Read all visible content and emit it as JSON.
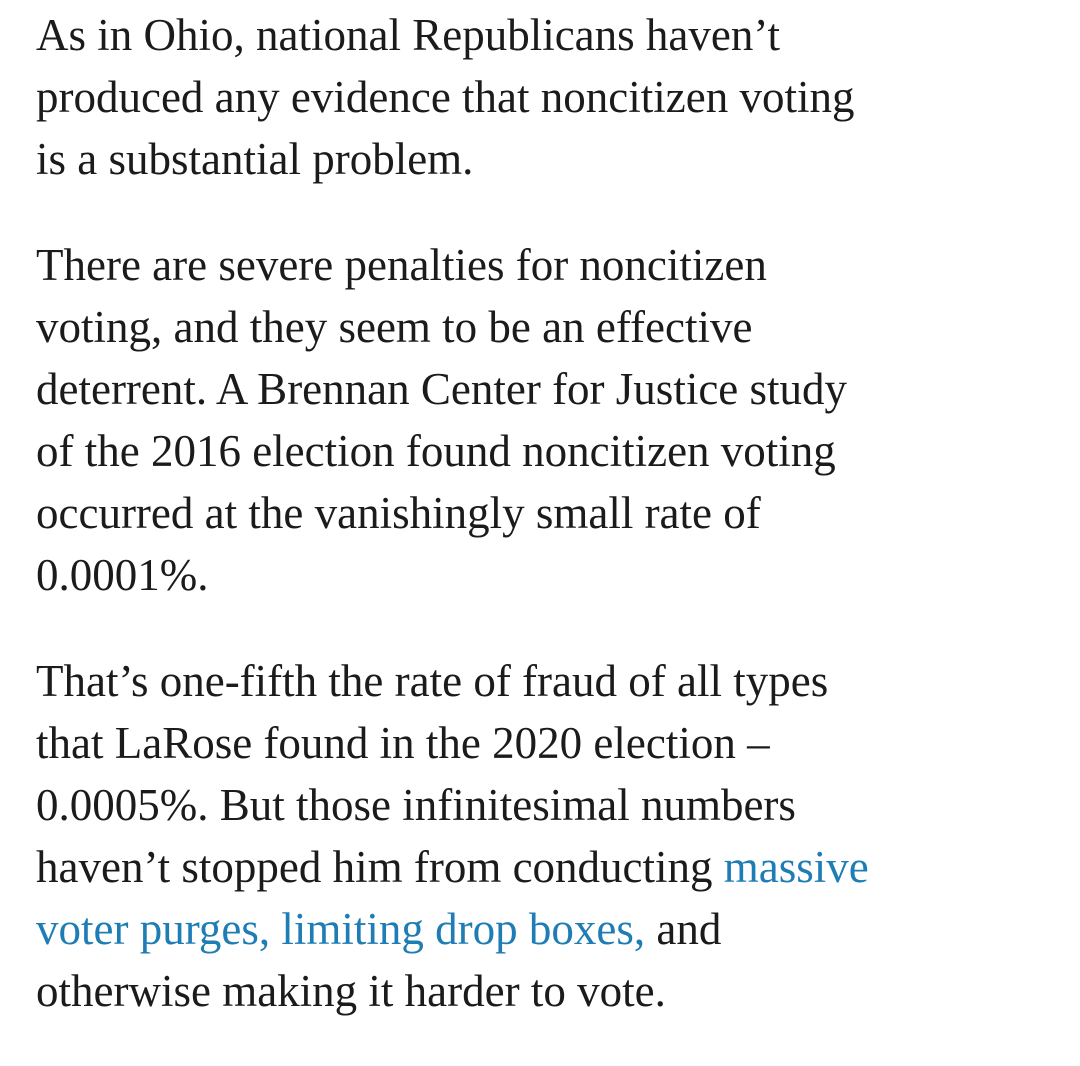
{
  "paragraphs": [
    {
      "lines": [
        [
          {
            "text": "As in Ohio, national Republicans haven’t"
          }
        ],
        [
          {
            "text": "produced any evidence that noncitizen voting"
          }
        ],
        [
          {
            "text": "is a substantial problem."
          }
        ]
      ]
    },
    {
      "lines": [
        [
          {
            "text": "There are severe penalties for noncitizen"
          }
        ],
        [
          {
            "text": "voting, and they seem to be an effective"
          }
        ],
        [
          {
            "text": "deterrent. A Brennan Center for Justice study"
          }
        ],
        [
          {
            "text": "of the 2016 election found noncitizen voting"
          }
        ],
        [
          {
            "text": "occurred at the vanishingly small rate of"
          }
        ],
        [
          {
            "text": "0.0001%."
          }
        ]
      ]
    },
    {
      "lines": [
        [
          {
            "text": "That’s one-fifth the rate of fraud of all types"
          }
        ],
        [
          {
            "text": "that LaRose found in the 2020 election –"
          }
        ],
        [
          {
            "text": "0.0005%. But those infinitesimal numbers"
          }
        ],
        [
          {
            "text": "haven’t stopped him from conducting "
          },
          {
            "link": "massive"
          }
        ],
        [
          {
            "link": "voter purges,"
          },
          {
            "text": " "
          },
          {
            "link": "limiting drop boxes,"
          },
          {
            "text": " and"
          }
        ],
        [
          {
            "text": "otherwise making it harder to vote."
          }
        ]
      ]
    }
  ]
}
